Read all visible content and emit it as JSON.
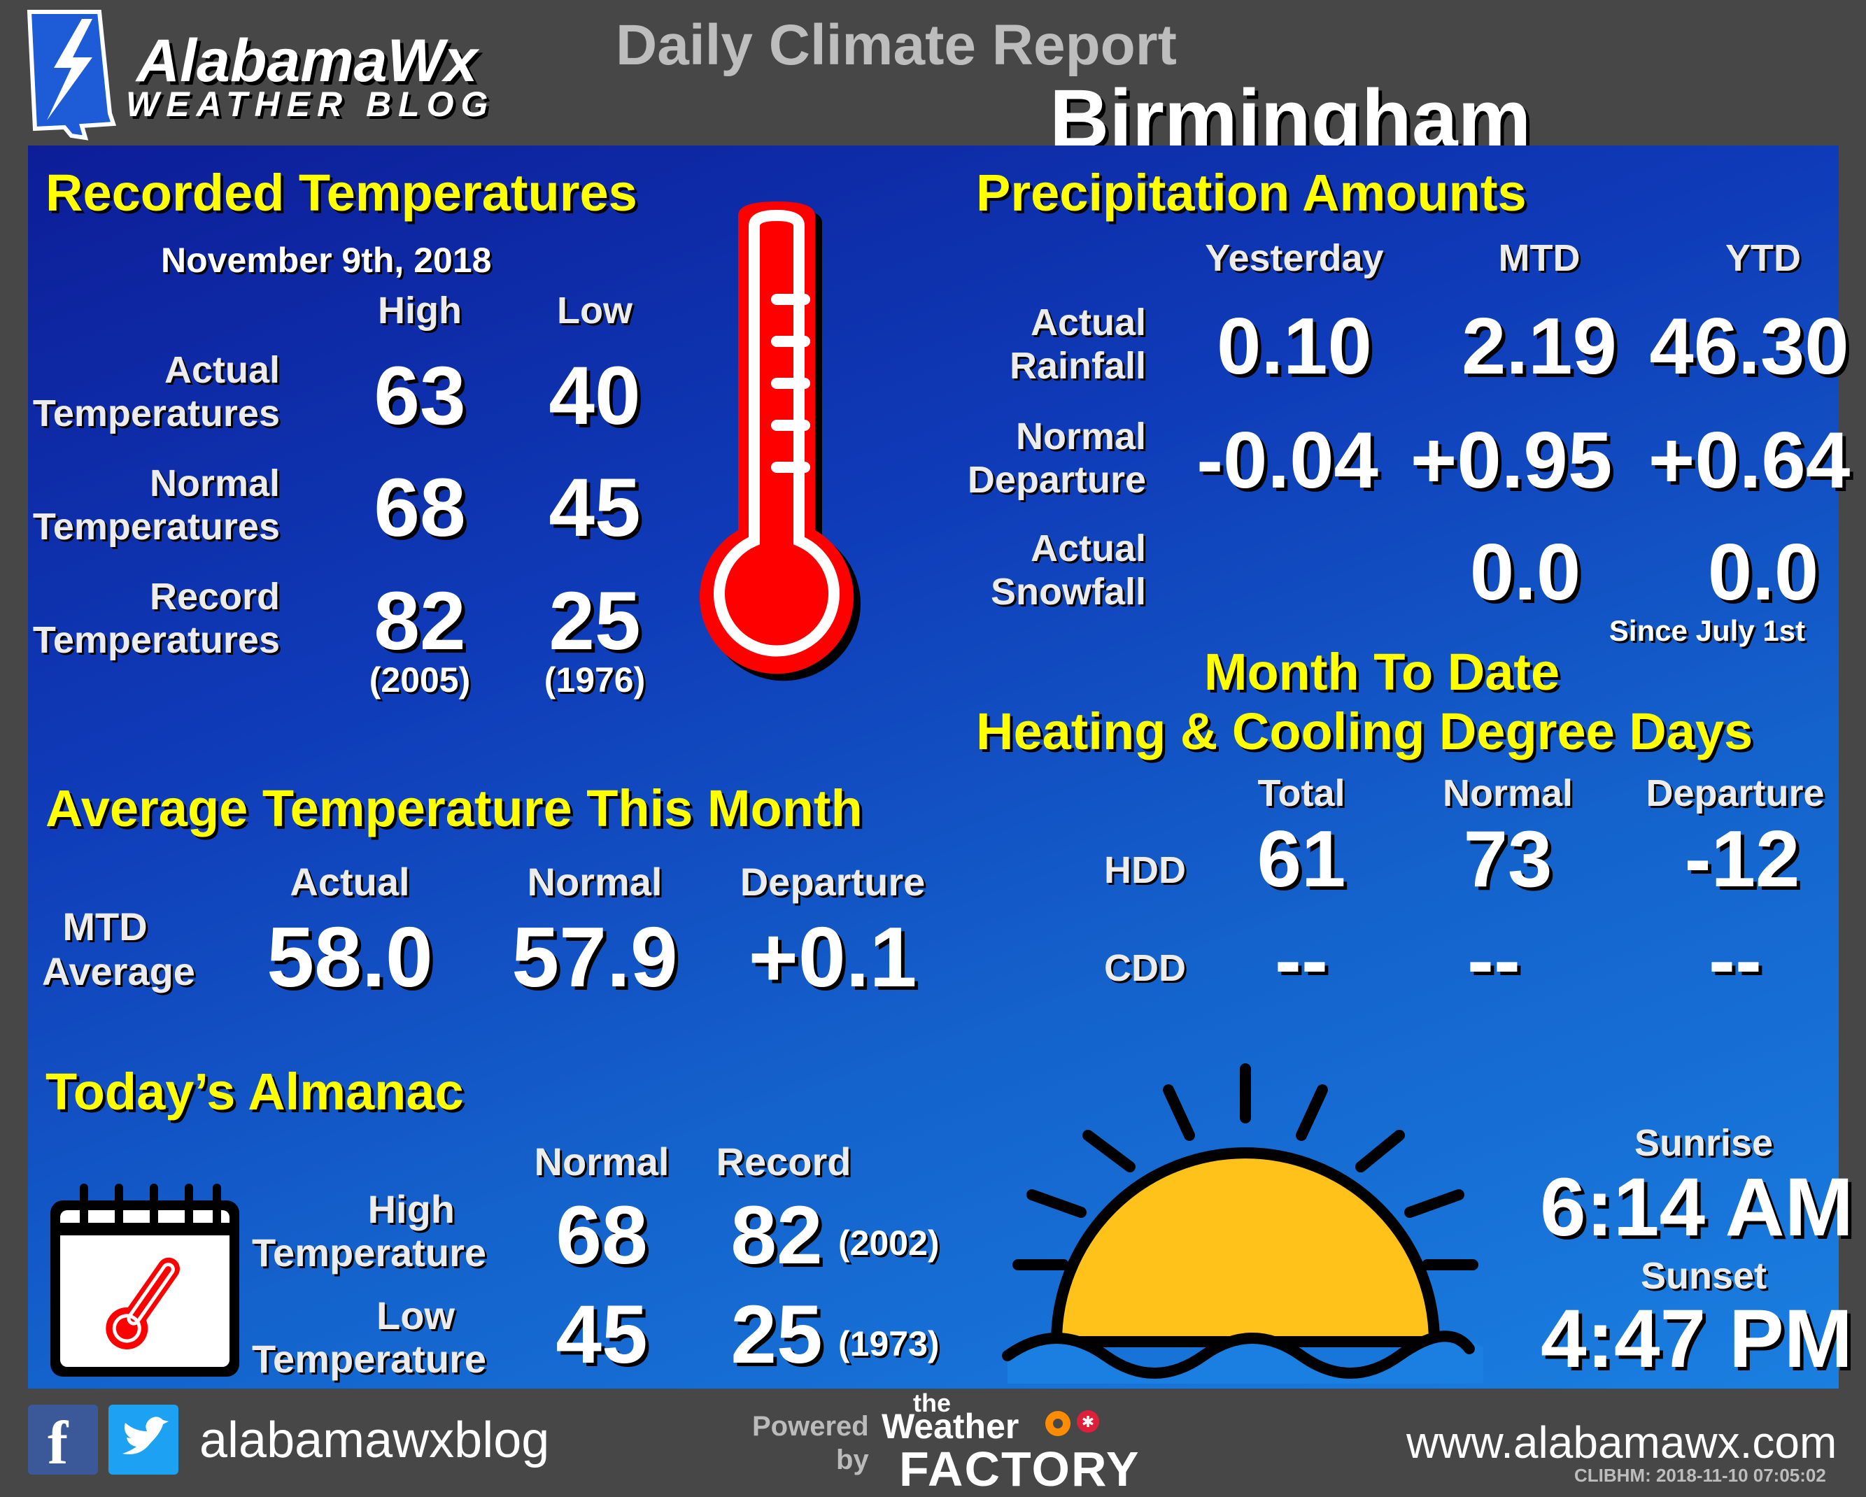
{
  "header": {
    "logo_word": "AlabamaWx",
    "logo_sub": "WEATHER BLOG",
    "title": "Daily Climate Report",
    "city": "Birmingham"
  },
  "recorded": {
    "heading": "Recorded Temperatures",
    "date": "November  9th, 2018",
    "col_high": "High",
    "col_low": "Low",
    "rows": [
      {
        "l1": "Actual",
        "l2": "Temperatures",
        "high": "63",
        "low": "40"
      },
      {
        "l1": "Normal",
        "l2": "Temperatures",
        "high": "68",
        "low": "45"
      },
      {
        "l1": "Record",
        "l2": "Temperatures",
        "high": "82",
        "low": "25"
      }
    ],
    "record_high_year": "(2005)",
    "record_low_year": "(1976)"
  },
  "precip": {
    "heading": "Precipitation Amounts",
    "cols": [
      "Yesterday",
      "MTD",
      "YTD"
    ],
    "rain_l1": "Actual",
    "rain_l2": "Rainfall",
    "rain": [
      "0.10",
      "2.19",
      "46.30"
    ],
    "dep_l1": "Normal",
    "dep_l2": "Departure",
    "dep": [
      "-0.04",
      "+0.95",
      "+0.64"
    ],
    "snow_l1": "Actual",
    "snow_l2": "Snowfall",
    "snow": [
      "0.0",
      "0.0"
    ],
    "snow_note": "Since  July  1st"
  },
  "degree_days": {
    "heading1": "Month To Date",
    "heading2": "Heating & Cooling Degree Days",
    "cols": [
      "Total",
      "Normal",
      "Departure"
    ],
    "hdd_label": "HDD",
    "hdd": [
      "61",
      "73",
      "-12"
    ],
    "cdd_label": "CDD",
    "cdd": [
      "--",
      "--",
      "--"
    ]
  },
  "avg_temp": {
    "heading": "Average Temperature This Month",
    "cols": [
      "Actual",
      "Normal",
      "Departure"
    ],
    "l1": "MTD",
    "l2": "Average",
    "values": [
      "58.0",
      "57.9",
      "+0.1"
    ]
  },
  "almanac": {
    "heading": "Today’s Almanac",
    "col_normal": "Normal",
    "col_record": "Record",
    "high_l1": "High",
    "high_l2": "Temperature",
    "high_normal": "68",
    "high_record": "82",
    "high_year": "(2002)",
    "low_l1": "Low",
    "low_l2": "Temperature",
    "low_normal": "45",
    "low_record": "25",
    "low_year": "(1973)"
  },
  "sun": {
    "sunrise_label": "Sunrise",
    "sunrise": "6:14 AM",
    "sunset_label": "Sunset",
    "sunset": "4:47 PM"
  },
  "footer": {
    "handle": "alabamawxblog",
    "powered1": "Powered",
    "powered2": "by",
    "wf_the": "the",
    "wf_weather": "Weather",
    "wf_factory": "FACTORY",
    "site": "www.alabamawx.com",
    "stamp": "CLIBHM:  2018-11-10  07:05:02"
  },
  "colors": {
    "background": "#474747",
    "heading": "#ffff00",
    "thermometer": "#ff0000",
    "sun": "#ffc21a"
  }
}
